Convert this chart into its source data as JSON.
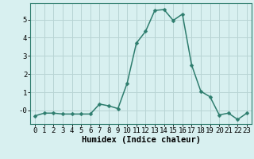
{
  "x": [
    0,
    1,
    2,
    3,
    4,
    5,
    6,
    7,
    8,
    9,
    10,
    11,
    12,
    13,
    14,
    15,
    16,
    17,
    18,
    19,
    20,
    21,
    22,
    23
  ],
  "y": [
    -0.3,
    -0.15,
    -0.15,
    -0.2,
    -0.2,
    -0.2,
    -0.2,
    0.35,
    0.25,
    0.1,
    1.5,
    3.7,
    4.35,
    5.5,
    5.55,
    4.95,
    5.3,
    2.5,
    1.05,
    0.75,
    -0.25,
    -0.15,
    -0.5,
    -0.15
  ],
  "line_color": "#2e7d6e",
  "marker": "D",
  "marker_size": 2.5,
  "bg_color": "#d8f0f0",
  "grid_color": "#b8d4d4",
  "xlabel": "Humidex (Indice chaleur)",
  "xlabel_fontsize": 7.5,
  "xlabel_fontweight": "bold",
  "xlim": [
    -0.5,
    23.5
  ],
  "ylim": [
    -0.75,
    5.9
  ],
  "yticks": [
    0,
    1,
    2,
    3,
    4,
    5
  ],
  "ytick_labels": [
    "-0",
    "1",
    "2",
    "3",
    "4",
    "5"
  ],
  "xticks": [
    0,
    1,
    2,
    3,
    4,
    5,
    6,
    7,
    8,
    9,
    10,
    11,
    12,
    13,
    14,
    15,
    16,
    17,
    18,
    19,
    20,
    21,
    22,
    23
  ],
  "tick_fontsize": 6.5,
  "line_width": 1.1
}
